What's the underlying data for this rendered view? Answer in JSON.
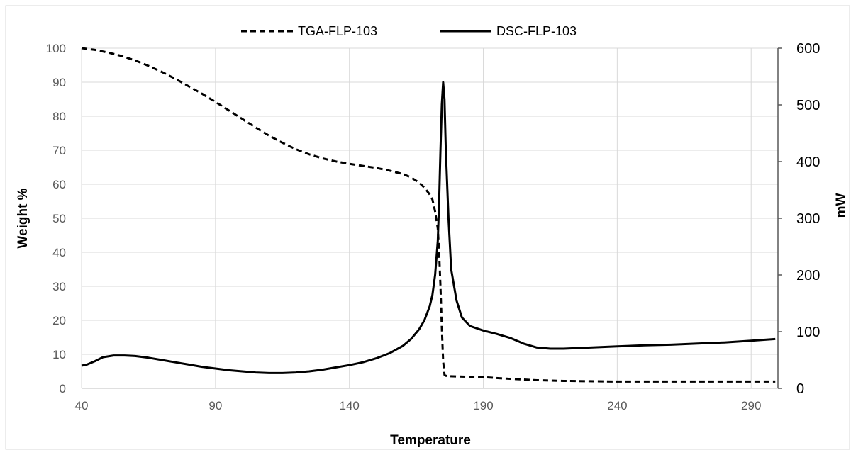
{
  "chart_data": {
    "type": "line",
    "title": "",
    "xlabel": "Temperature",
    "ylabel_left": "Weight %",
    "ylabel_right": "mW",
    "xlim": [
      40,
      300
    ],
    "ylim_left": [
      0,
      100
    ],
    "ylim_right": [
      0,
      600
    ],
    "x_ticks": [
      40,
      90,
      140,
      190,
      240,
      290
    ],
    "y_left_ticks": [
      0,
      10,
      20,
      30,
      40,
      50,
      60,
      70,
      80,
      90,
      100
    ],
    "y_right_ticks": [
      0,
      100,
      200,
      300,
      400,
      500,
      600
    ],
    "grid": true,
    "legend_position": "top",
    "series": [
      {
        "name": "TGA-FLP-103",
        "axis": "left",
        "style": "dashed",
        "color": "#000000",
        "x": [
          40,
          45,
          50,
          55,
          60,
          65,
          70,
          75,
          80,
          85,
          90,
          95,
          100,
          105,
          110,
          115,
          120,
          125,
          130,
          135,
          140,
          145,
          150,
          155,
          160,
          163,
          166,
          168,
          170,
          171,
          172,
          173,
          173.5,
          174,
          174.5,
          175,
          175.5,
          176,
          177,
          180,
          190,
          200,
          210,
          220,
          230,
          240,
          250,
          260,
          270,
          280,
          290,
          299
        ],
        "y": [
          100,
          99.5,
          98.7,
          97.7,
          96.4,
          94.8,
          93.0,
          91.0,
          88.8,
          86.6,
          84.2,
          81.7,
          79.2,
          76.7,
          74.3,
          72.2,
          70.3,
          68.8,
          67.6,
          66.7,
          66.0,
          65.4,
          64.8,
          64.0,
          63.0,
          62.0,
          60.5,
          59.0,
          57.0,
          55.5,
          52.0,
          47.0,
          40.0,
          30.0,
          18.0,
          8.0,
          4.0,
          3.7,
          3.6,
          3.5,
          3.3,
          2.8,
          2.4,
          2.2,
          2.1,
          2.0,
          2.0,
          2.0,
          2.0,
          2.0,
          2.0,
          2.0
        ]
      },
      {
        "name": "DSC-FLP-103",
        "axis": "right",
        "style": "solid",
        "color": "#000000",
        "x": [
          40,
          42,
          45,
          48,
          52,
          56,
          60,
          65,
          70,
          75,
          80,
          85,
          90,
          95,
          100,
          105,
          110,
          115,
          120,
          125,
          130,
          135,
          140,
          145,
          150,
          155,
          160,
          163,
          166,
          168,
          170,
          171,
          172,
          173,
          173.5,
          174,
          174.5,
          175,
          175.5,
          176,
          177,
          178,
          180,
          182,
          185,
          190,
          195,
          200,
          205,
          210,
          215,
          220,
          230,
          240,
          250,
          260,
          270,
          280,
          290,
          299
        ],
        "y": [
          40,
          42,
          48,
          55,
          58,
          58,
          57,
          54,
          50,
          46,
          42,
          38,
          35,
          32,
          30,
          28,
          27,
          27,
          28,
          30,
          33,
          37,
          41,
          46,
          53,
          62,
          75,
          87,
          104,
          120,
          145,
          165,
          200,
          260,
          330,
          420,
          500,
          540,
          510,
          420,
          300,
          210,
          155,
          125,
          110,
          102,
          96,
          89,
          79,
          72,
          70,
          70,
          72,
          74,
          76,
          77,
          79,
          81,
          84,
          87
        ]
      }
    ]
  }
}
